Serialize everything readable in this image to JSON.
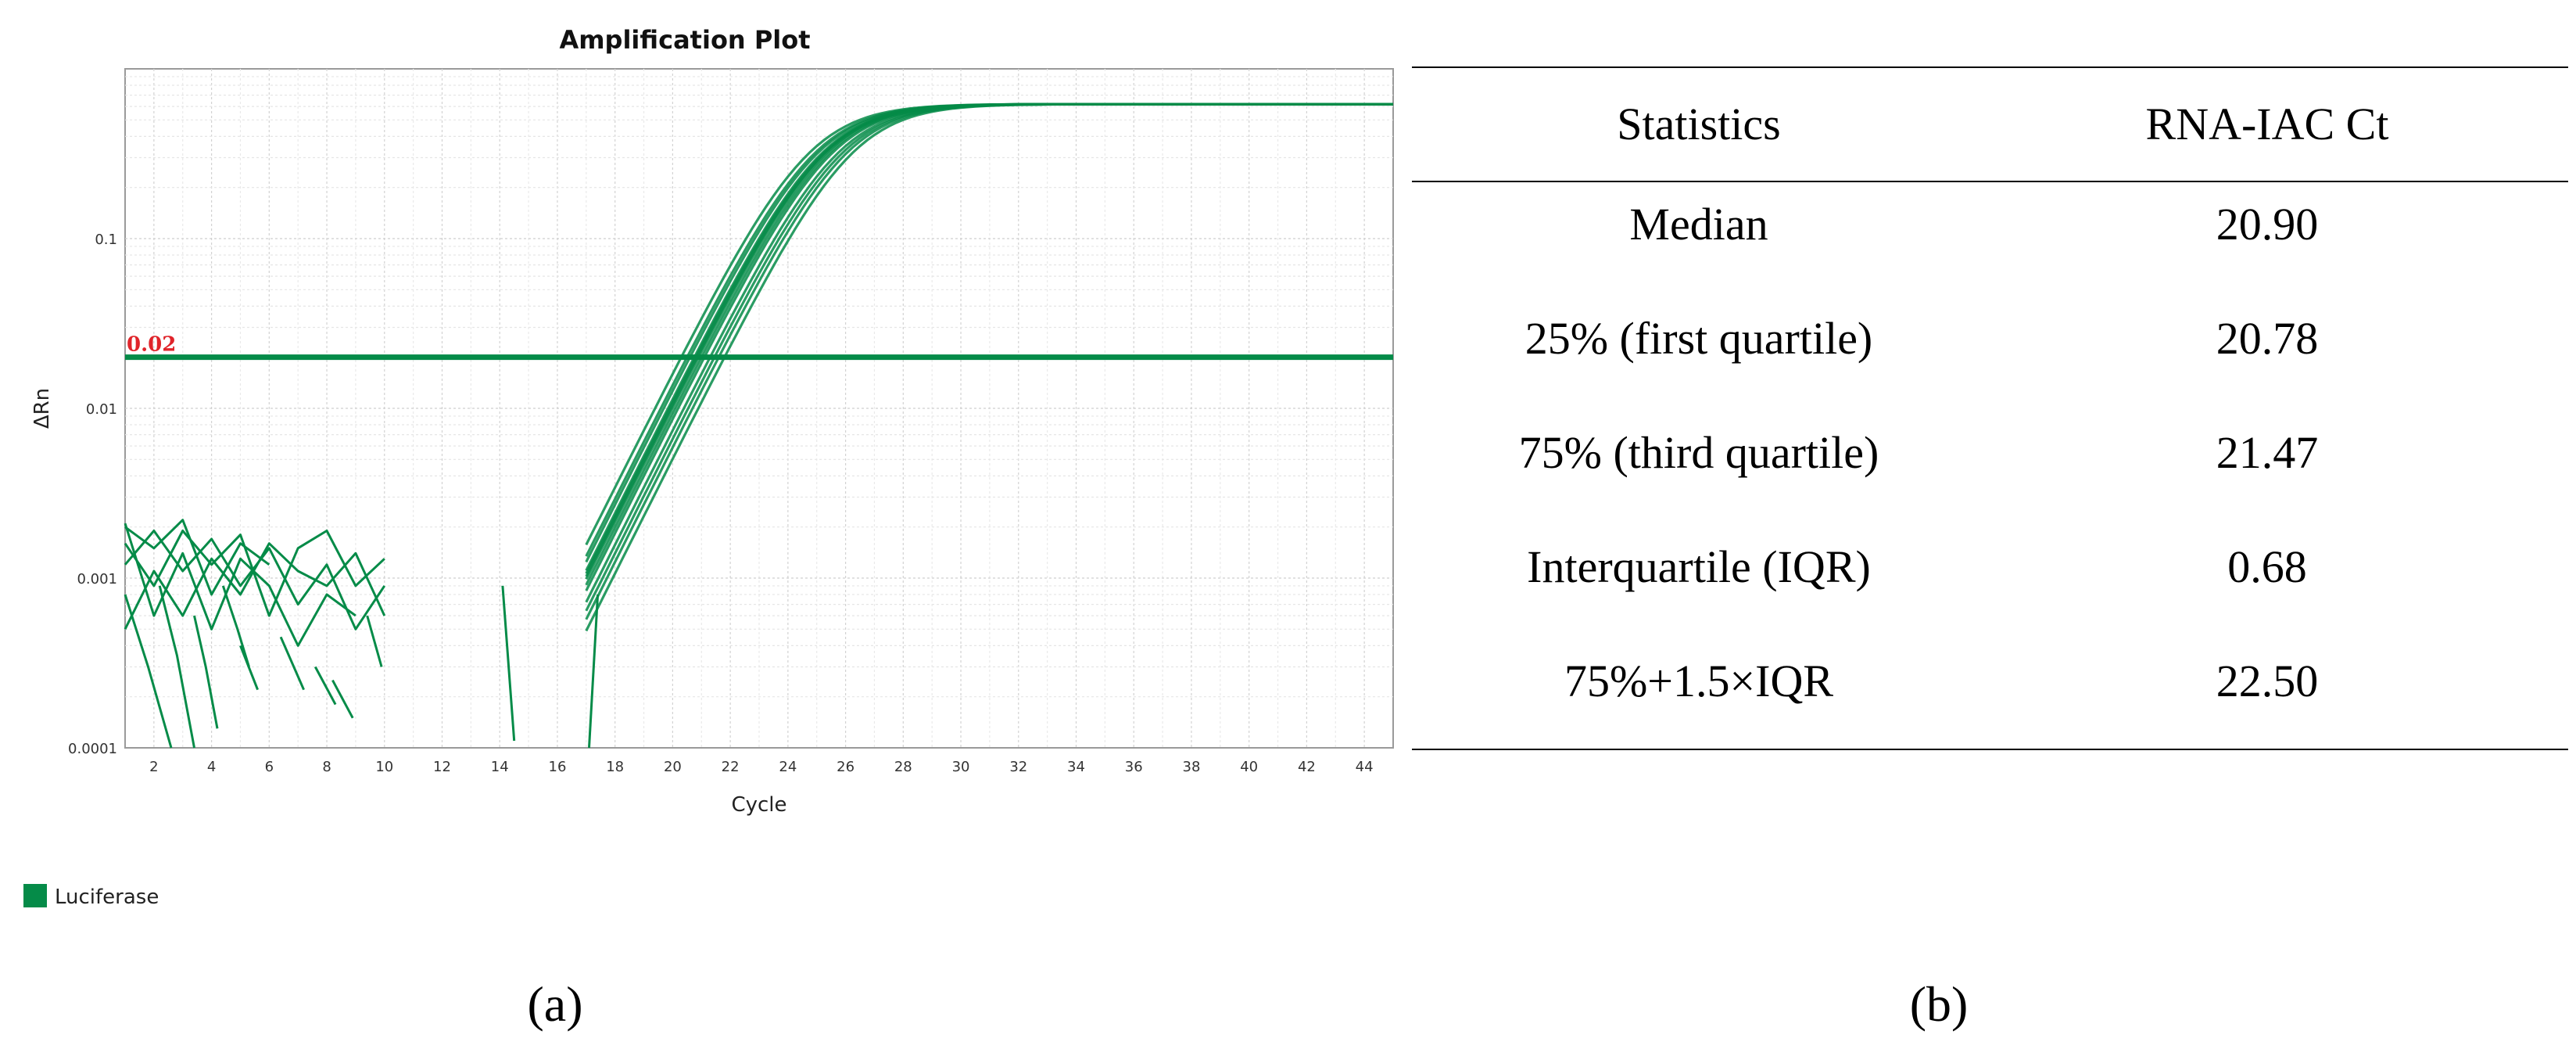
{
  "chart_data": [
    {
      "type": "line",
      "title": "Amplification Plot",
      "xlabel": "Cycle",
      "ylabel": "ΔRn",
      "xlim": [
        1,
        45
      ],
      "ylim": [
        0.0001,
        1
      ],
      "y_scale": "log",
      "x_ticks": [
        2,
        4,
        6,
        8,
        10,
        12,
        14,
        16,
        18,
        20,
        22,
        24,
        26,
        28,
        30,
        32,
        34,
        36,
        38,
        40,
        42,
        44
      ],
      "y_ticks": [
        0.0001,
        0.001,
        0.01,
        0.1
      ],
      "y_tick_labels": [
        "0.0001",
        "0.001",
        "0.01",
        "0.1"
      ],
      "grid": true,
      "threshold": {
        "value": 0.02,
        "label": "0.02",
        "line_color": "#058B48",
        "label_color": "#E0242A"
      },
      "legend": {
        "placement": "bottom-left",
        "entries": [
          {
            "name": "Luciferase",
            "color": "#058B48"
          }
        ]
      },
      "line_color": "#058B48",
      "amplification_ct_values": [
        20.3,
        20.5,
        20.6,
        20.75,
        20.8,
        20.85,
        20.9,
        21.0,
        21.1,
        21.3,
        21.45,
        21.6,
        21.8
      ],
      "plateau": 0.62,
      "noise_lines": [
        {
          "x": [
            1,
            2,
            3,
            4,
            5,
            6
          ],
          "y": [
            0.002,
            0.0015,
            0.0022,
            0.0008,
            0.0016,
            0.0012
          ]
        },
        {
          "x": [
            1,
            2,
            3,
            4,
            5,
            6,
            7,
            8,
            9,
            10
          ],
          "y": [
            0.0012,
            0.0019,
            0.0011,
            0.0017,
            0.0009,
            0.0015,
            0.0007,
            0.0012,
            0.0005,
            0.0009
          ]
        },
        {
          "x": [
            1,
            2,
            3,
            4,
            5,
            6,
            7,
            8,
            9,
            10
          ],
          "y": [
            0.0005,
            0.0011,
            0.0006,
            0.0013,
            0.0008,
            0.0016,
            0.0011,
            0.0009,
            0.0014,
            0.0006
          ]
        },
        {
          "x": [
            1,
            2,
            3,
            4,
            5,
            6,
            7,
            8,
            9,
            10
          ],
          "y": [
            0.0016,
            0.0009,
            0.0019,
            0.0012,
            0.0018,
            0.0006,
            0.0015,
            0.0019,
            0.0009,
            0.0013
          ]
        },
        {
          "x": [
            1,
            2,
            3,
            4,
            5,
            6,
            7,
            8,
            9
          ],
          "y": [
            0.0021,
            0.0006,
            0.0014,
            0.0005,
            0.0013,
            0.0009,
            0.0004,
            0.0008,
            0.0006
          ]
        },
        {
          "x": [
            1,
            1.8,
            2.6
          ],
          "y": [
            0.0008,
            0.0003,
            0.0001
          ]
        },
        {
          "x": [
            2.2,
            2.8,
            3.4
          ],
          "y": [
            0.0009,
            0.00035,
            0.0001
          ]
        },
        {
          "x": [
            3.4,
            3.8,
            4.2
          ],
          "y": [
            0.0006,
            0.0003,
            0.00013
          ]
        },
        {
          "x": [
            5,
            5.6
          ],
          "y": [
            0.0004,
            0.00022
          ]
        },
        {
          "x": [
            6.4,
            7.2
          ],
          "y": [
            0.00045,
            0.00022
          ]
        },
        {
          "x": [
            7.6,
            8.3
          ],
          "y": [
            0.0003,
            0.00018
          ]
        },
        {
          "x": [
            8.2,
            8.9
          ],
          "y": [
            0.00025,
            0.00015
          ]
        },
        {
          "x": [
            4.4,
            4.9,
            5.3
          ],
          "y": [
            0.0009,
            0.0005,
            0.0003
          ]
        },
        {
          "x": [
            9.4,
            9.9
          ],
          "y": [
            0.0006,
            0.0003
          ]
        },
        {
          "x": [
            14.1,
            14.5
          ],
          "y": [
            0.0009,
            0.00011
          ]
        },
        {
          "x": [
            17.1,
            17.4
          ],
          "y": [
            0.0001,
            0.0008
          ]
        }
      ]
    },
    {
      "type": "table",
      "columns": [
        "Statistics",
        "RNA-IAC Ct"
      ],
      "rows": [
        [
          "Median",
          "20.90"
        ],
        [
          "25% (first quartile)",
          "20.78"
        ],
        [
          "75% (third quartile)",
          "21.47"
        ],
        [
          "Interquartile (IQR)",
          "0.68"
        ],
        [
          "75%+1.5×IQR",
          "22.50"
        ]
      ]
    }
  ],
  "panel_labels": {
    "a": "(a)",
    "b": "(b)"
  }
}
